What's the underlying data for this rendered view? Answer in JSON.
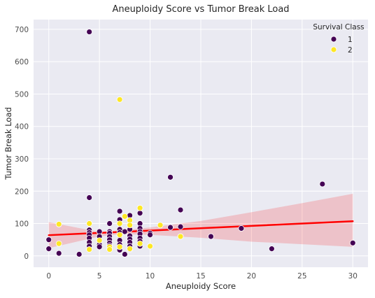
{
  "chart_data": {
    "type": "scatter",
    "title": "Aneuploidy Score vs Tumor Break Load",
    "xlabel": "Aneuploidy Score",
    "ylabel": "Tumor Break Load",
    "xlim": [
      -1.5,
      31.5
    ],
    "ylim": [
      -35,
      730
    ],
    "x_ticks": [
      0,
      5,
      10,
      15,
      20,
      25,
      30
    ],
    "y_ticks": [
      0,
      100,
      200,
      300,
      400,
      500,
      600,
      700
    ],
    "grid": true,
    "legend": {
      "title": "Survival Class",
      "position": "top-right"
    },
    "series": [
      {
        "name": "1",
        "color": "#440154",
        "points": [
          [
            0,
            50
          ],
          [
            0,
            22
          ],
          [
            1,
            8
          ],
          [
            3,
            5
          ],
          [
            4,
            692
          ],
          [
            4,
            180
          ],
          [
            4,
            80
          ],
          [
            4,
            72
          ],
          [
            4,
            65
          ],
          [
            4,
            55
          ],
          [
            4,
            42
          ],
          [
            4,
            30
          ],
          [
            4,
            20
          ],
          [
            5,
            75
          ],
          [
            5,
            60
          ],
          [
            5,
            45
          ],
          [
            5,
            35
          ],
          [
            5,
            28
          ],
          [
            6,
            100
          ],
          [
            6,
            75
          ],
          [
            6,
            70
          ],
          [
            6,
            60
          ],
          [
            6,
            50
          ],
          [
            6,
            40
          ],
          [
            6,
            32
          ],
          [
            7,
            138
          ],
          [
            7,
            112
          ],
          [
            7,
            82
          ],
          [
            7,
            72
          ],
          [
            7,
            62
          ],
          [
            7,
            48
          ],
          [
            7,
            35
          ],
          [
            7,
            18
          ],
          [
            7.5,
            5
          ],
          [
            7.5,
            75
          ],
          [
            8,
            125
          ],
          [
            8,
            82
          ],
          [
            8,
            62
          ],
          [
            8,
            52
          ],
          [
            8,
            42
          ],
          [
            8,
            30
          ],
          [
            8,
            20
          ],
          [
            9,
            132
          ],
          [
            9,
            100
          ],
          [
            9,
            85
          ],
          [
            9,
            75
          ],
          [
            9,
            68
          ],
          [
            9,
            55
          ],
          [
            9,
            45
          ],
          [
            9,
            30
          ],
          [
            10,
            70
          ],
          [
            10,
            65
          ],
          [
            12,
            243
          ],
          [
            12,
            88
          ],
          [
            13,
            142
          ],
          [
            13,
            90
          ],
          [
            16,
            60
          ],
          [
            19,
            85
          ],
          [
            22,
            22
          ],
          [
            27,
            222
          ],
          [
            30,
            40
          ]
        ]
      },
      {
        "name": "2",
        "color": "#fde725",
        "points": [
          [
            1,
            38
          ],
          [
            1,
            98
          ],
          [
            4,
            100
          ],
          [
            4,
            20
          ],
          [
            5,
            48
          ],
          [
            6,
            28
          ],
          [
            6,
            20
          ],
          [
            7,
            483
          ],
          [
            7,
            100
          ],
          [
            7,
            65
          ],
          [
            7,
            28
          ],
          [
            7.5,
            122
          ],
          [
            8,
            110
          ],
          [
            8,
            95
          ],
          [
            8,
            22
          ],
          [
            9,
            148
          ],
          [
            9,
            38
          ],
          [
            10,
            30
          ],
          [
            11,
            95
          ],
          [
            13,
            60
          ]
        ]
      }
    ],
    "regression": {
      "color": "#ff0000",
      "x": [
        0,
        30
      ],
      "y": [
        64,
        107
      ],
      "ci_lower": [
        [
          0,
          24
        ],
        [
          5,
          60
        ],
        [
          7,
          67
        ],
        [
          10,
          65
        ],
        [
          15,
          56
        ],
        [
          20,
          44
        ],
        [
          25,
          36
        ],
        [
          30,
          28
        ]
      ],
      "ci_upper": [
        [
          0,
          104
        ],
        [
          5,
          74
        ],
        [
          7,
          78
        ],
        [
          10,
          88
        ],
        [
          15,
          108
        ],
        [
          20,
          135
        ],
        [
          25,
          163
        ],
        [
          30,
          192
        ]
      ]
    }
  }
}
